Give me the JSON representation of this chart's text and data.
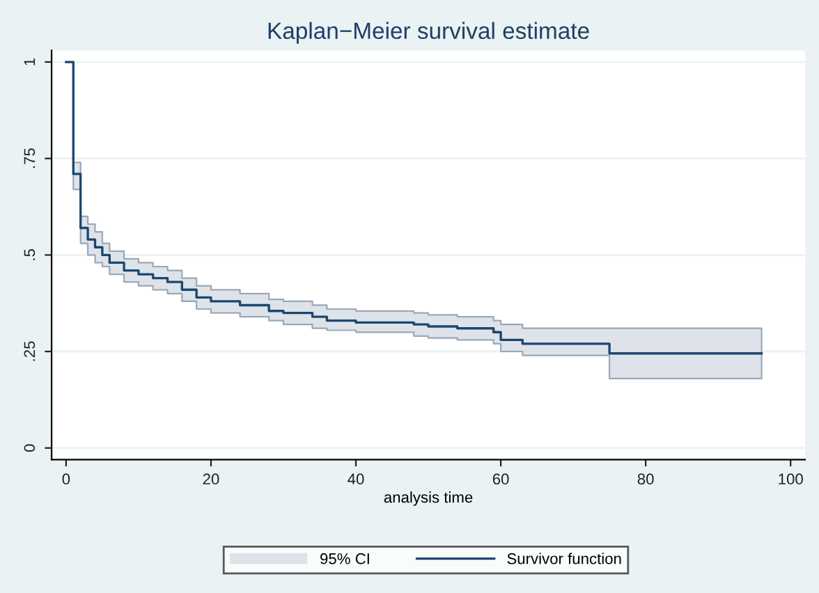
{
  "chart_data": {
    "type": "step",
    "title": "Kaplan−Meier survival estimate",
    "xlabel": "analysis time",
    "x": [
      0,
      1,
      2,
      3,
      4,
      5,
      6,
      8,
      10,
      12,
      14,
      16,
      18,
      20,
      24,
      28,
      30,
      34,
      36,
      40,
      48,
      50,
      54,
      59,
      60,
      63,
      75,
      96
    ],
    "series": [
      {
        "name": "Survivor function",
        "color": "#1a476f",
        "values": [
          1,
          0.71,
          0.57,
          0.54,
          0.52,
          0.5,
          0.48,
          0.46,
          0.45,
          0.44,
          0.43,
          0.41,
          0.39,
          0.38,
          0.37,
          0.355,
          0.35,
          0.34,
          0.33,
          0.325,
          0.32,
          0.315,
          0.31,
          0.3,
          0.28,
          0.27,
          0.245,
          0.245
        ],
        "lower": [
          1,
          0.67,
          0.53,
          0.5,
          0.48,
          0.47,
          0.45,
          0.43,
          0.42,
          0.41,
          0.4,
          0.38,
          0.36,
          0.35,
          0.34,
          0.33,
          0.32,
          0.31,
          0.305,
          0.3,
          0.29,
          0.285,
          0.28,
          0.27,
          0.25,
          0.24,
          0.18,
          0.18
        ],
        "upper": [
          1,
          0.74,
          0.6,
          0.58,
          0.56,
          0.53,
          0.51,
          0.49,
          0.48,
          0.47,
          0.46,
          0.44,
          0.42,
          0.41,
          0.4,
          0.385,
          0.38,
          0.37,
          0.36,
          0.355,
          0.35,
          0.345,
          0.34,
          0.33,
          0.32,
          0.31,
          0.31,
          0.31
        ]
      }
    ],
    "annotations": [
      "95% CI"
    ],
    "xlim": [
      -2,
      102
    ],
    "ylim": [
      -0.03,
      1.03
    ],
    "xticks": [
      0,
      20,
      40,
      60,
      80,
      100
    ],
    "yticks": [
      0,
      {
        "value": 0.25,
        "label": ".25"
      },
      {
        "value": 0.5,
        "label": ".5"
      },
      {
        "value": 0.75,
        "label": ".75"
      },
      1
    ],
    "grid": "y",
    "legend": "bottom"
  }
}
